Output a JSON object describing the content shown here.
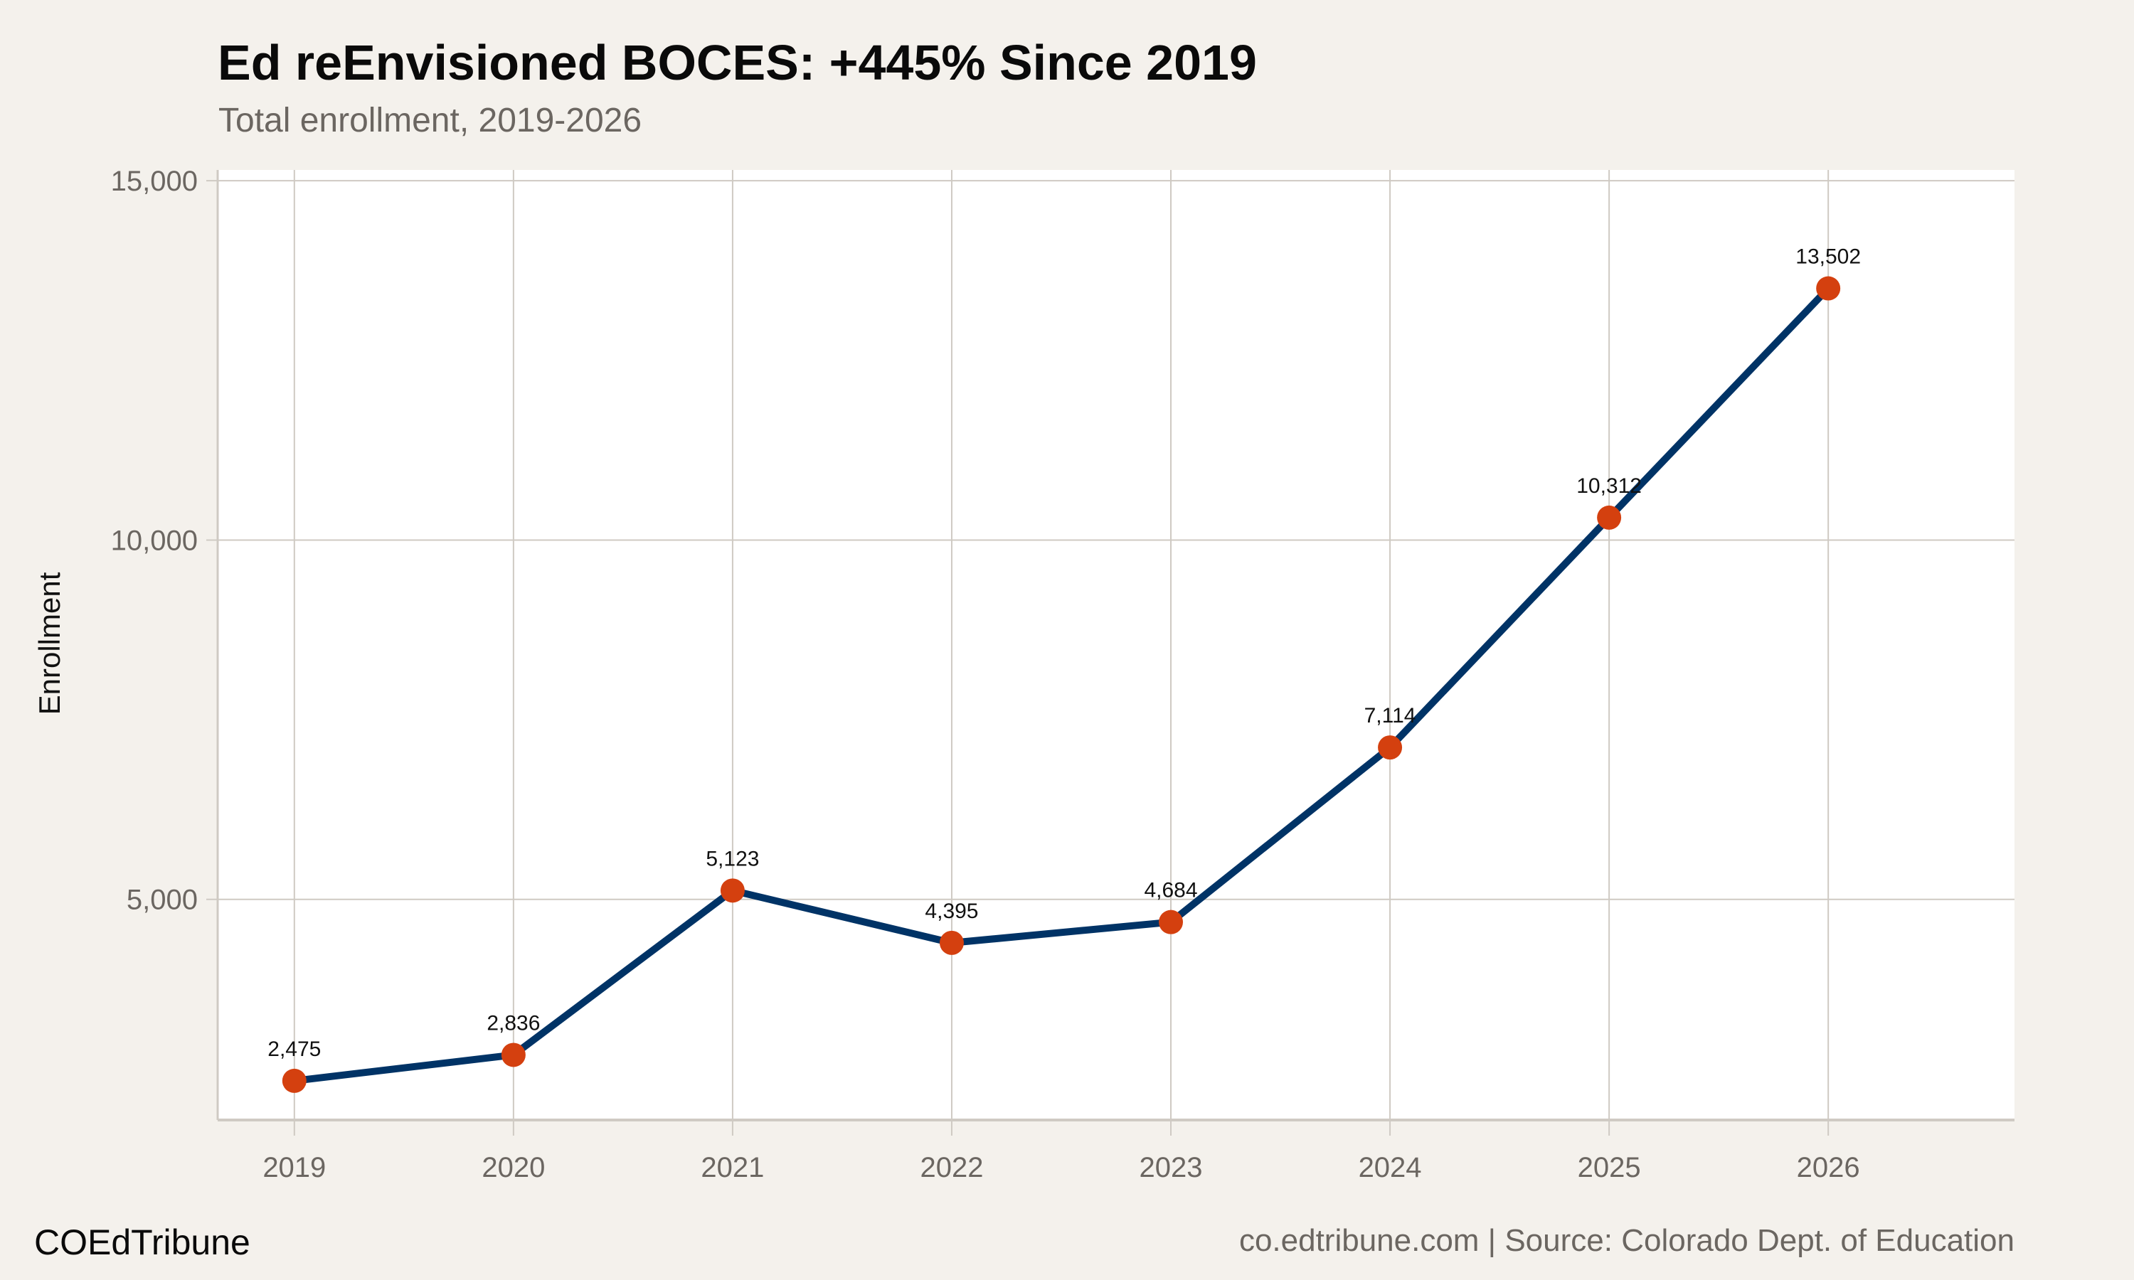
{
  "chart_data": {
    "type": "line",
    "title": "Ed reEnvisioned BOCES: +445% Since 2019",
    "subtitle": "Total enrollment, 2019-2026",
    "xlabel": "",
    "ylabel": "Enrollment",
    "x": [
      2019,
      2020,
      2021,
      2022,
      2023,
      2024,
      2025,
      2026
    ],
    "values": [
      2475,
      2836,
      5123,
      4395,
      4684,
      7114,
      10312,
      13502
    ],
    "data_labels": [
      "2,475",
      "2,836",
      "5,123",
      "4,395",
      "4,684",
      "7,114",
      "10,312",
      "13,502"
    ],
    "x_ticks": [
      "2019",
      "2020",
      "2021",
      "2022",
      "2023",
      "2024",
      "2025",
      "2026"
    ],
    "y_ticks": [
      5000,
      10000,
      15000
    ],
    "y_tick_labels": [
      "5,000",
      "10,000",
      "15,000"
    ],
    "ylim": [
      1930,
      15150
    ],
    "xlim": [
      2018.65,
      2026.85
    ],
    "grid": true,
    "line_color": "#003366",
    "marker_color": "#d4400f"
  },
  "footer": {
    "brand": "COEdTribune",
    "source": "co.edtribune.com | Source: Colorado Dept. of Education"
  }
}
